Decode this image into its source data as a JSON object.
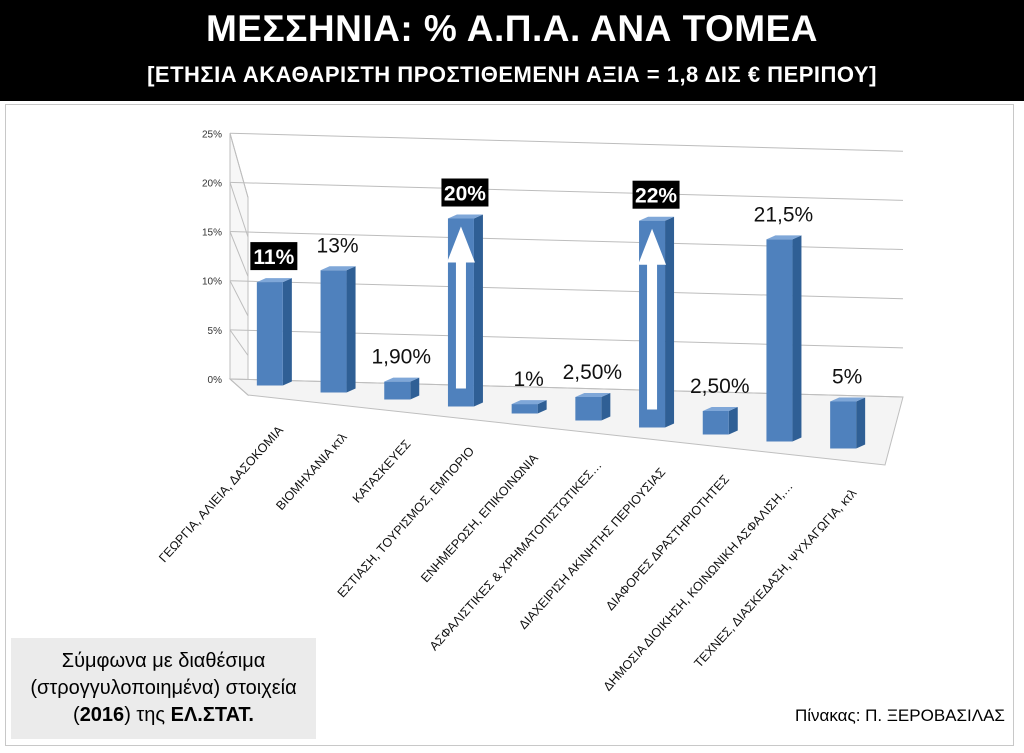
{
  "header": {
    "title": "ΜΕΣΣΗΝΙΑ: % Α.Π.Α. ΑΝΑ ΤΟΜΕΑ",
    "subtitle": "[ΕΤΗΣΙΑ ΑΚΑΘΑΡΙΣΤΗ ΠΡΟΣΤΙΘΕΜΕΝΗ ΑΞΙΑ = 1,8 ΔΙΣ € ΠΕΡΙΠΟΥ]"
  },
  "note": {
    "line1": "Σύμφωνα με διαθέσιμα",
    "line2": "(στρογγυλοποιημένα) στοιχεία",
    "year": "2016",
    "middle": ") της ",
    "source": "ΕΛ.ΣΤΑΤ."
  },
  "credit": "Πίνακας: Π. ΞΕΡΟΒΑΣΙΛΑΣ",
  "chart_data": {
    "type": "bar",
    "bar_color": "#4f81bd",
    "ylim": [
      0,
      25
    ],
    "yticks": [
      "0%",
      "5%",
      "10%",
      "15%",
      "20%",
      "25%"
    ],
    "grid": true,
    "categories": [
      "ΓΕΩΡΓΙΑ, ΑΛΙΕΙΑ, ΔΑΣΟΚΟΜΙΑ",
      "ΒΙΟΜΗΧΑΝΙΑ κτλ",
      "ΚΑΤΑΣΚΕΥΕΣ",
      "ΕΣΤΙΑΣΗ, ΤΟΥΡΙΣΜΟΣ, ΕΜΠΟΡΙΟ",
      "ΕΝΗΜΕΡΩΣΗ, ΕΠΙΚΟΙΝΩΝΙΑ",
      "ΑΣΦΑΛΙΣΤΙΚΕΣ & ΧΡΗΜΑΤΟΠΙΣΤΩΤΙΚΕΣ…",
      "ΔΙΑΧΕΙΡΙΣΗ ΑΚΙΝΗΤΗΣ ΠΕΡΙΟΥΣΙΑΣ",
      "ΔΙΑΦΟΡΕΣ ΔΡΑΣΤΗΡΙΟΤΗΤΕΣ",
      "ΔΗΜΟΣΙΑ ΔΙΟΙΚΗΣΗ, ΚΟΙΝΩΝΙΚΗ ΑΣΦΑΛΙΣΗ,…",
      "ΤΕΧΝΕΣ, ΔΙΑΣΚΕΔΑΣΗ, ΨΥΧΑΓΩΓΙΑ, κτλ"
    ],
    "values": [
      11,
      13,
      1.9,
      20,
      1,
      2.5,
      22,
      2.5,
      21.5,
      5
    ],
    "data_labels": [
      "11%",
      "13%",
      "1,90%",
      "20%",
      "1%",
      "2,50%",
      "22%",
      "2,50%",
      "21,5%",
      "5%"
    ],
    "highlighted": [
      true,
      false,
      false,
      true,
      false,
      false,
      true,
      false,
      false,
      false
    ],
    "arrows": [
      false,
      false,
      false,
      true,
      false,
      false,
      true,
      false,
      false,
      false
    ]
  }
}
